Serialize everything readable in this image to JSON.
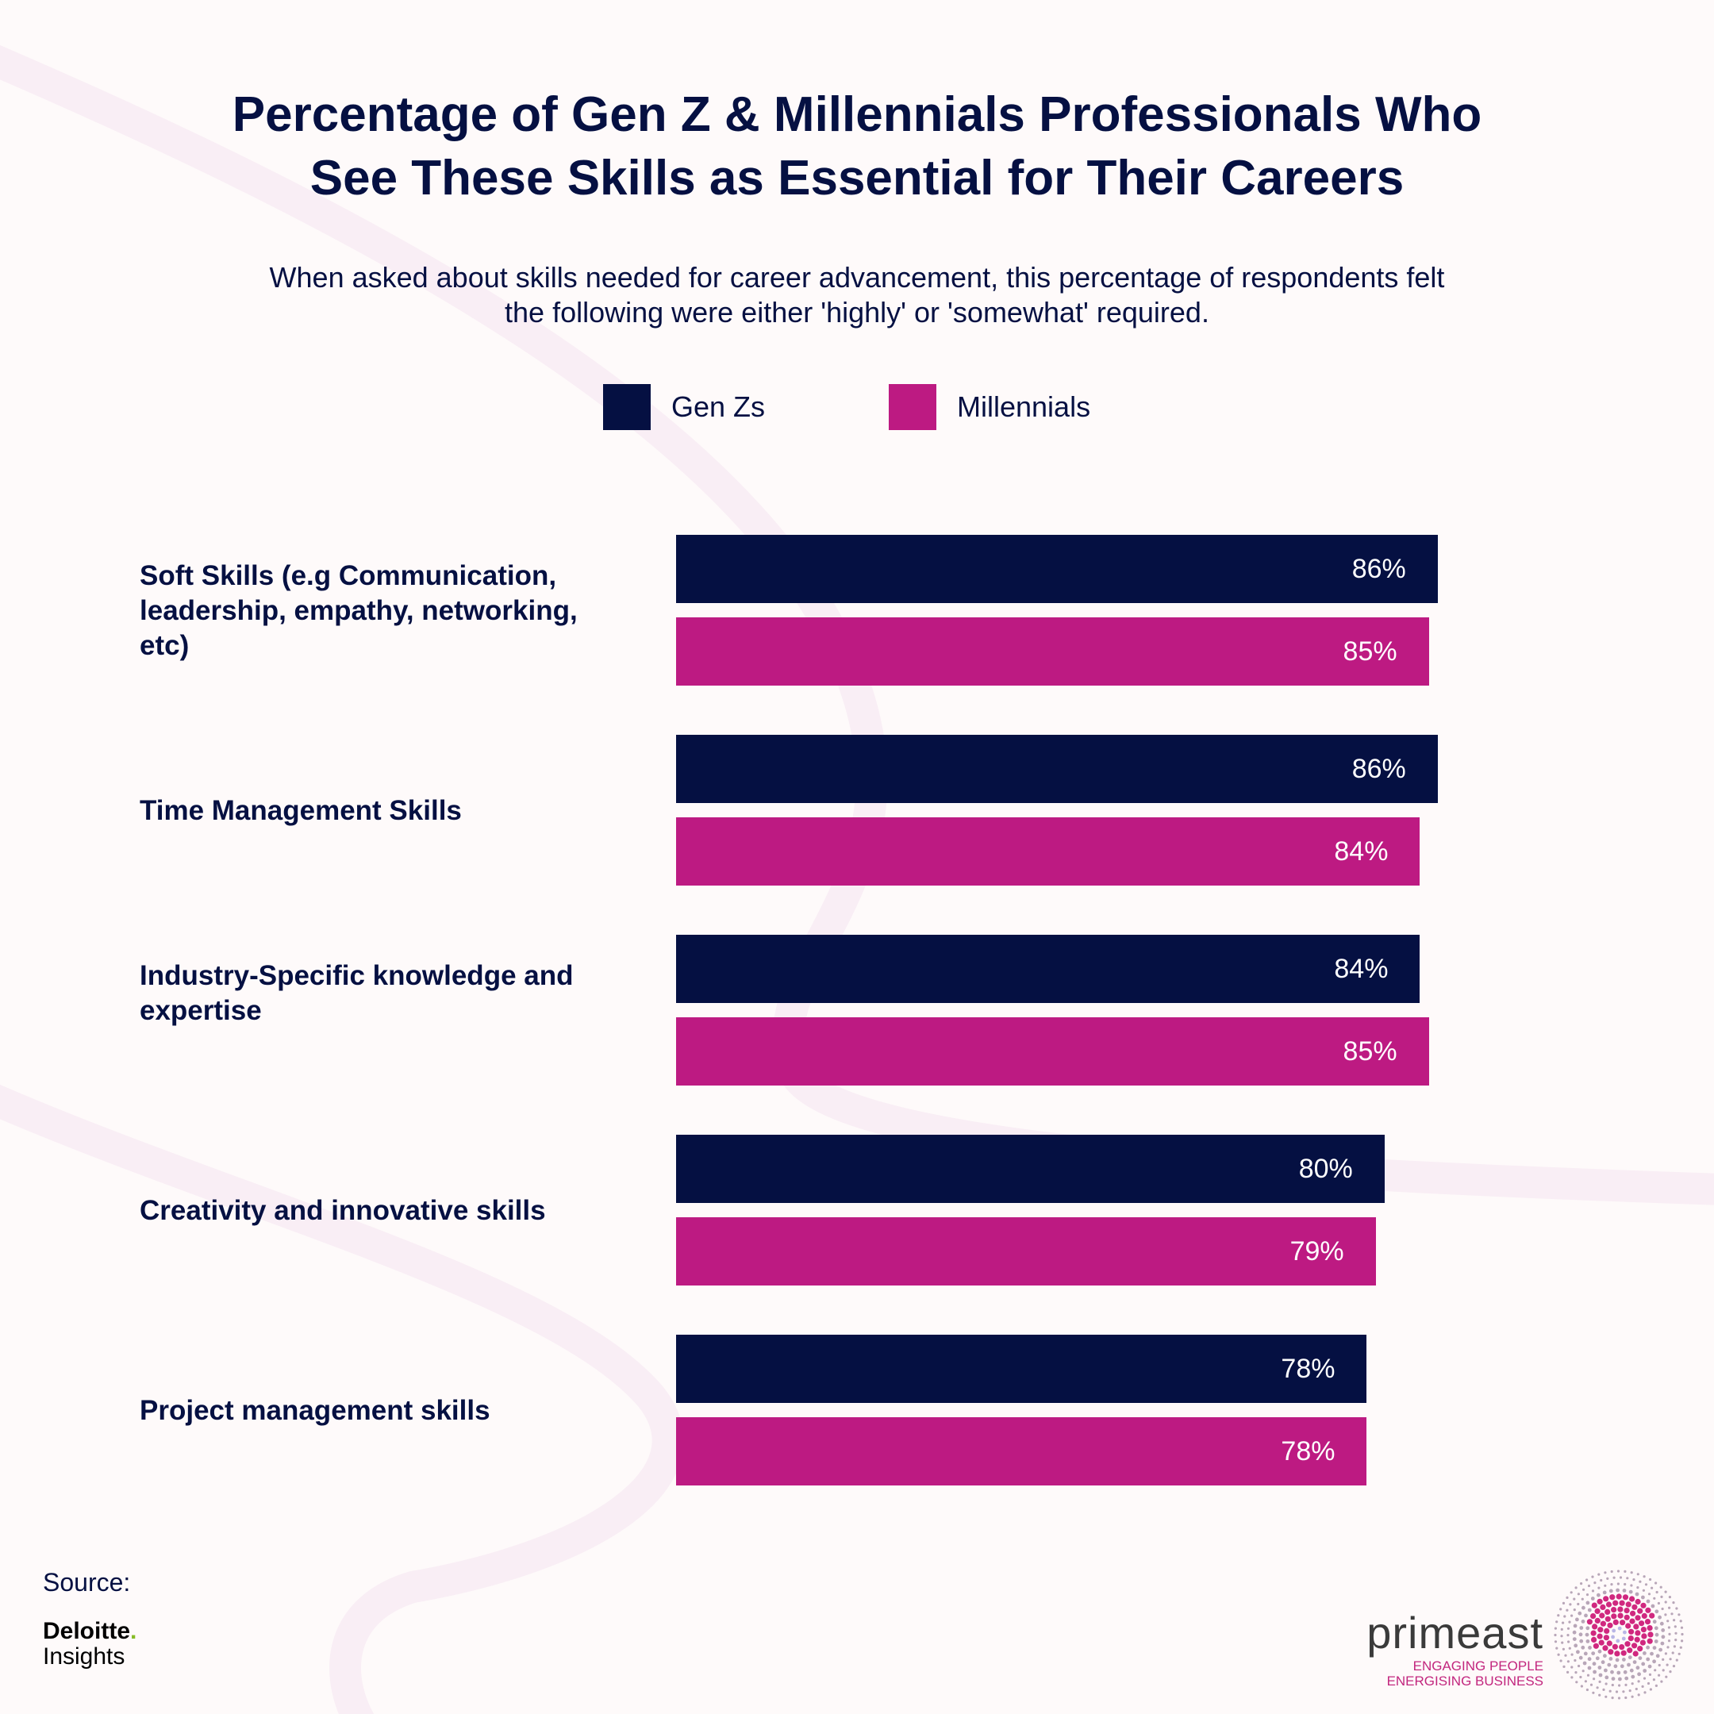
{
  "header": {
    "title_lines": [
      "Percentage of Gen Z & Millennials Professionals Who",
      "See These Skills as Essential for Their Careers"
    ],
    "subtitle_lines": [
      "When asked about skills needed for career advancement, this percentage of respondents felt",
      "the following were either 'highly' or 'somewhat' required."
    ]
  },
  "legend": [
    {
      "name": "Gen Zs",
      "color": "#051042"
    },
    {
      "name": "Millennials",
      "color": "#bd1a82"
    }
  ],
  "chart_data": {
    "type": "bar",
    "orientation": "horizontal",
    "title": "Percentage of Gen Z & Millennials Professionals Who See These Skills as Essential for Their Careers",
    "subtitle": "When asked about skills needed for career advancement, this percentage of respondents felt the following were either 'highly' or 'somewhat' required.",
    "categories": [
      "Soft Skills (e.g Communication, leadership, empathy, networking, etc)",
      "Time Management Skills",
      "Industry-Specific knowledge and expertise",
      "Creativity and innovative skills",
      "Project management skills"
    ],
    "series": [
      {
        "name": "Gen Zs",
        "color": "#051042",
        "values": [
          86,
          86,
          84,
          80,
          78
        ],
        "labels": [
          "86%",
          "86%",
          "84%",
          "80%",
          "78%"
        ]
      },
      {
        "name": "Millennials",
        "color": "#bd1a82",
        "values": [
          85,
          84,
          85,
          79,
          78
        ],
        "labels": [
          "85%",
          "84%",
          "85%",
          "79%",
          "78%"
        ]
      }
    ],
    "xlabel": "",
    "ylabel": "",
    "xlim": [
      0,
      100
    ],
    "unit": "%",
    "grid": false,
    "legend_position": "top-center"
  },
  "footer": {
    "source_label": "Source:",
    "source_brand": "Deloitte",
    "source_brand_dot": ".",
    "source_brand_sub": "Insights",
    "logo_name": "primeast",
    "logo_tagline_1": "ENGAGING PEOPLE",
    "logo_tagline_2": "ENERGISING BUSINESS"
  }
}
